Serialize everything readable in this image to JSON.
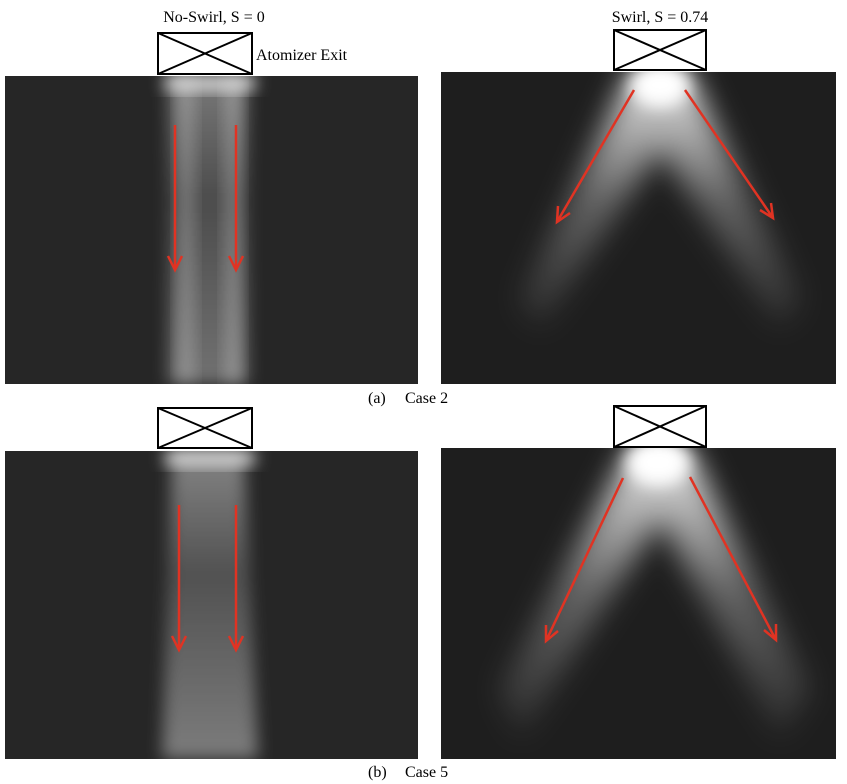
{
  "header": {
    "left_title": "No-Swirl, S = 0",
    "right_title": "Swirl, S = 0.74",
    "atomizer_label": "Atomizer Exit"
  },
  "captions": [
    {
      "label": "(a)",
      "text": "Case 2"
    },
    {
      "label": "(b)",
      "text": "Case 5"
    }
  ]
}
